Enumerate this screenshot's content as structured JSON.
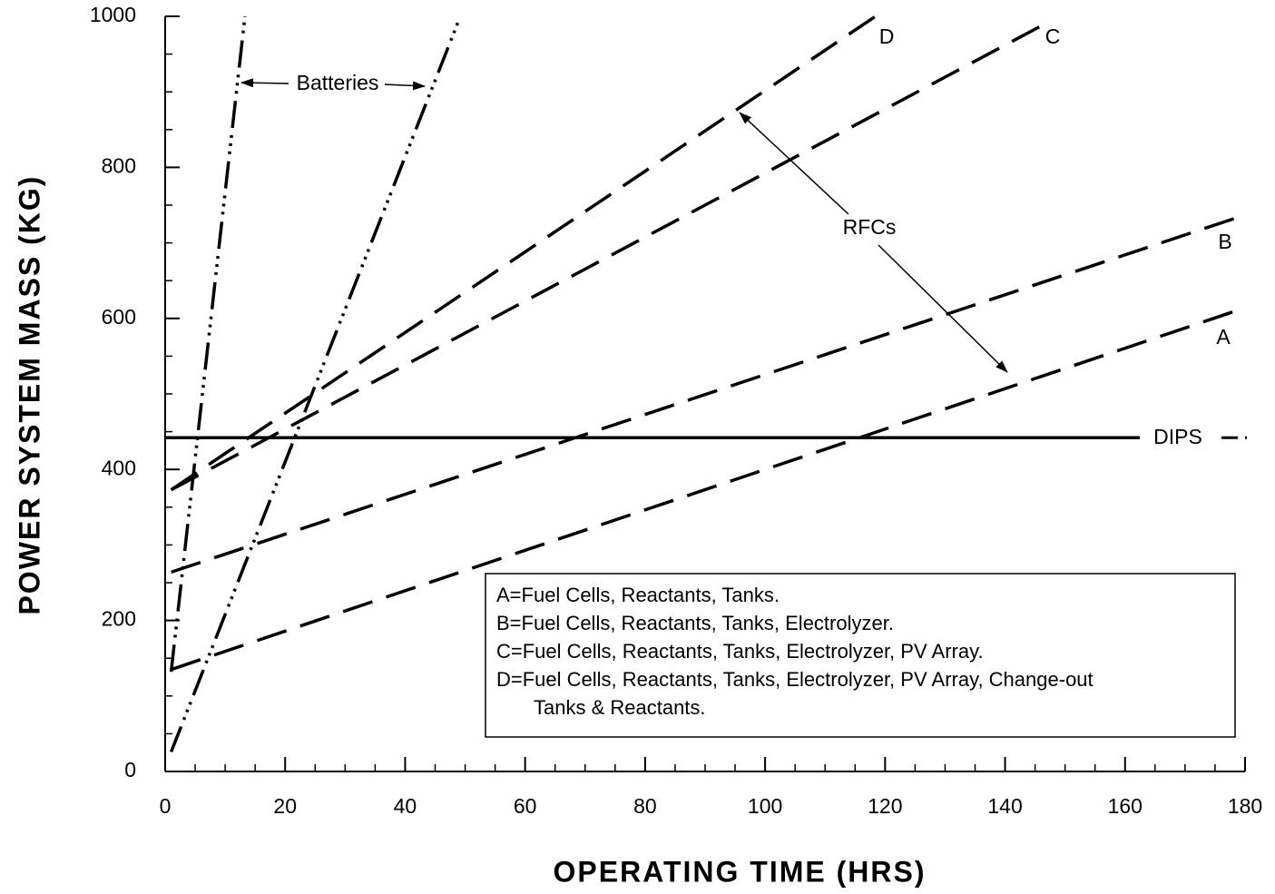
{
  "chart_data": {
    "type": "line",
    "xlabel": "OPERATING TIME (HRS)",
    "ylabel": "POWER SYSTEM MASS (KG)",
    "xlim": [
      0,
      180
    ],
    "ylim": [
      0,
      1000
    ],
    "xticks": [
      0,
      20,
      40,
      60,
      80,
      100,
      120,
      140,
      160,
      180
    ],
    "yticks": [
      0,
      200,
      400,
      600,
      800,
      1000
    ],
    "xminor": 5,
    "yminor": 50,
    "grid": false,
    "series": [
      {
        "color": "#000000",
        "style": "dash-dot-dot",
        "x": [
          1,
          13.3
        ],
        "values": [
          132,
          1000
        ]
      },
      {
        "color": "#000000",
        "style": "dash-dot-dot",
        "x": [
          1,
          49.2
        ],
        "values": [
          26,
          1000
        ]
      },
      {
        "name": "A",
        "color": "#000000",
        "style": "dash",
        "x": [
          1,
          178.5
        ],
        "values": [
          135,
          610
        ]
      },
      {
        "name": "B",
        "color": "#000000",
        "style": "dash",
        "x": [
          1,
          178.5
        ],
        "values": [
          264,
          733
        ]
      },
      {
        "name": "C",
        "color": "#000000",
        "style": "dash",
        "x": [
          1,
          145.7
        ],
        "values": [
          373,
          986
        ]
      },
      {
        "name": "D",
        "color": "#000000",
        "style": "dash",
        "x": [
          1,
          118.4
        ],
        "values": [
          373,
          1000
        ]
      },
      {
        "name": "DIPS",
        "color": "#000000",
        "style": "solid",
        "x": [
          0,
          180
        ],
        "values": [
          442,
          442
        ]
      }
    ],
    "annotations": [
      "Batteries",
      "RFCs"
    ],
    "notes": [
      "A=Fuel Cells, Reactants, Tanks.",
      "B=Fuel Cells, Reactants, Tanks, Electrolyzer.",
      "C=Fuel Cells, Reactants, Tanks, Electrolyzer, PV Array.",
      "D=Fuel Cells, Reactants, Tanks, Electrolyzer, PV Array, Change-out",
      "Tanks & Reactants."
    ]
  }
}
